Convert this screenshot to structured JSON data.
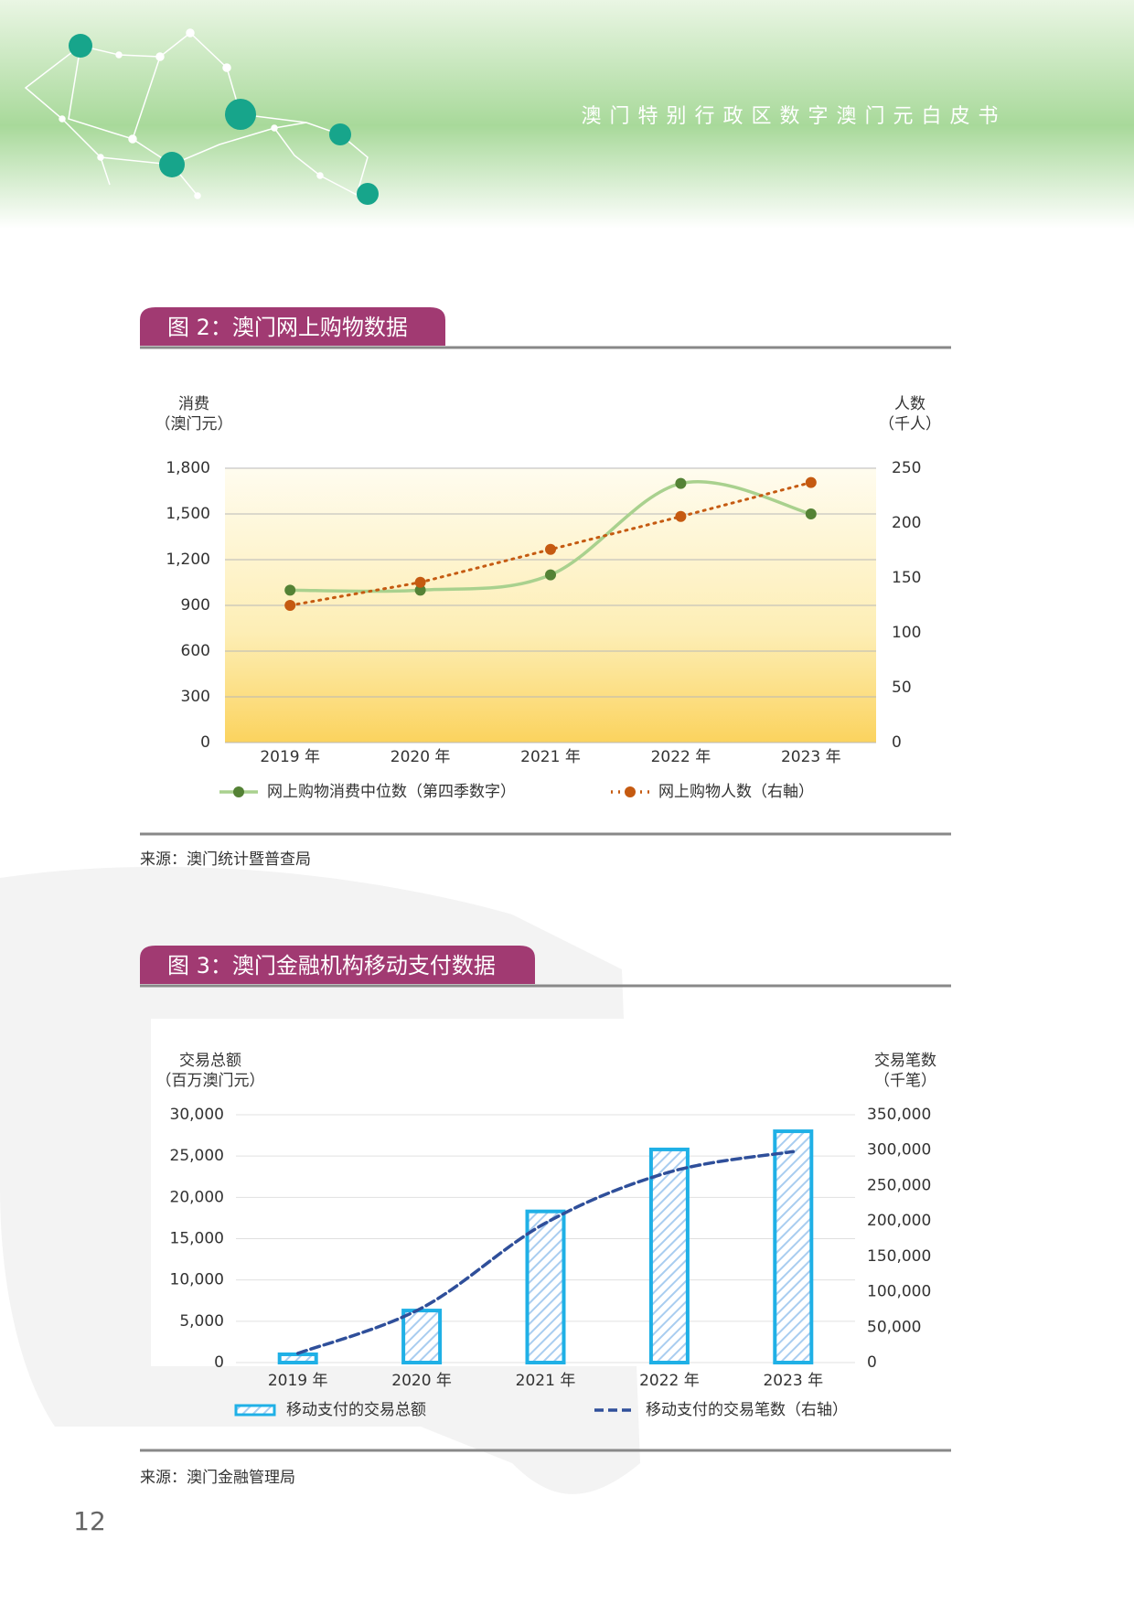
{
  "header": {
    "title": "澳门特别行政区数字澳门元白皮书"
  },
  "chart_data": [
    {
      "type": "line",
      "title": "图 2：澳门网上购物数据",
      "ylabel": [
        "消费",
        "（澳门元）"
      ],
      "y2label": [
        "人数",
        "（千人）"
      ],
      "categories": [
        "2019 年",
        "2020 年",
        "2021 年",
        "2022 年",
        "2023 年"
      ],
      "series": [
        {
          "name": "网上购物消费中位数（第四季数字）",
          "color": "#a9d18e",
          "marker_color": "#548235",
          "line_style": "smooth",
          "values": [
            1000,
            1000,
            1100,
            1700,
            1500
          ]
        },
        {
          "name": "网上购物人数（右軸）",
          "color": "#c55a11",
          "marker_color": "#c55a11",
          "line_style": "dotted",
          "axis": "y2",
          "values": [
            125,
            146,
            176,
            206,
            237
          ]
        }
      ],
      "ylim": [
        0,
        1800
      ],
      "yticks": [
        0,
        300,
        600,
        900,
        {
          "value": 1200,
          "label": "1,200"
        },
        {
          "value": 1500,
          "label": "1,500"
        },
        {
          "value": 1800,
          "label": "1,800"
        }
      ],
      "y2lim": [
        0,
        250
      ],
      "y2ticks": [
        0,
        50,
        100,
        150,
        200,
        250
      ],
      "grid": true,
      "source": "来源：澳门统计暨普查局"
    },
    {
      "type": "bar",
      "title": "图 3：澳门金融机构移动支付数据",
      "ylabel": [
        "交易总额",
        "（百万澳门元）"
      ],
      "y2label": [
        "交易笔数",
        "（千笔）"
      ],
      "categories": [
        "2019 年",
        "2020 年",
        "2021 年",
        "2022 年",
        "2023 年"
      ],
      "series": [
        {
          "name": "移动支付的交易总额",
          "color": "#1fb0e6",
          "values": [
            1000,
            6300,
            18300,
            25800,
            28000
          ]
        },
        {
          "name": "移动支付的交易笔数（右轴）",
          "color": "#2f4f9a",
          "type": "line",
          "line_style": "dashed",
          "axis": "y2",
          "values": [
            13000,
            77000,
            197000,
            269000,
            298000
          ]
        }
      ],
      "ylim": [
        0,
        30000
      ],
      "yticks": [
        0,
        {
          "value": 5000,
          "label": "5,000"
        },
        {
          "value": 10000,
          "label": "10,000"
        },
        {
          "value": 15000,
          "label": "15,000"
        },
        {
          "value": 20000,
          "label": "20,000"
        },
        {
          "value": 25000,
          "label": "25,000"
        },
        {
          "value": 30000,
          "label": "30,000"
        }
      ],
      "y2lim": [
        0,
        350000
      ],
      "y2ticks": [
        0,
        {
          "value": 50000,
          "label": "50,000"
        },
        {
          "value": 100000,
          "label": "100,000"
        },
        {
          "value": 150000,
          "label": "150,000"
        },
        {
          "value": 200000,
          "label": "200,000"
        },
        {
          "value": 250000,
          "label": "250,000"
        },
        {
          "value": 300000,
          "label": "300,000"
        },
        {
          "value": 350000,
          "label": "350,000"
        }
      ],
      "grid": true,
      "source": "来源：澳门金融管理局"
    }
  ],
  "page_number": "12"
}
